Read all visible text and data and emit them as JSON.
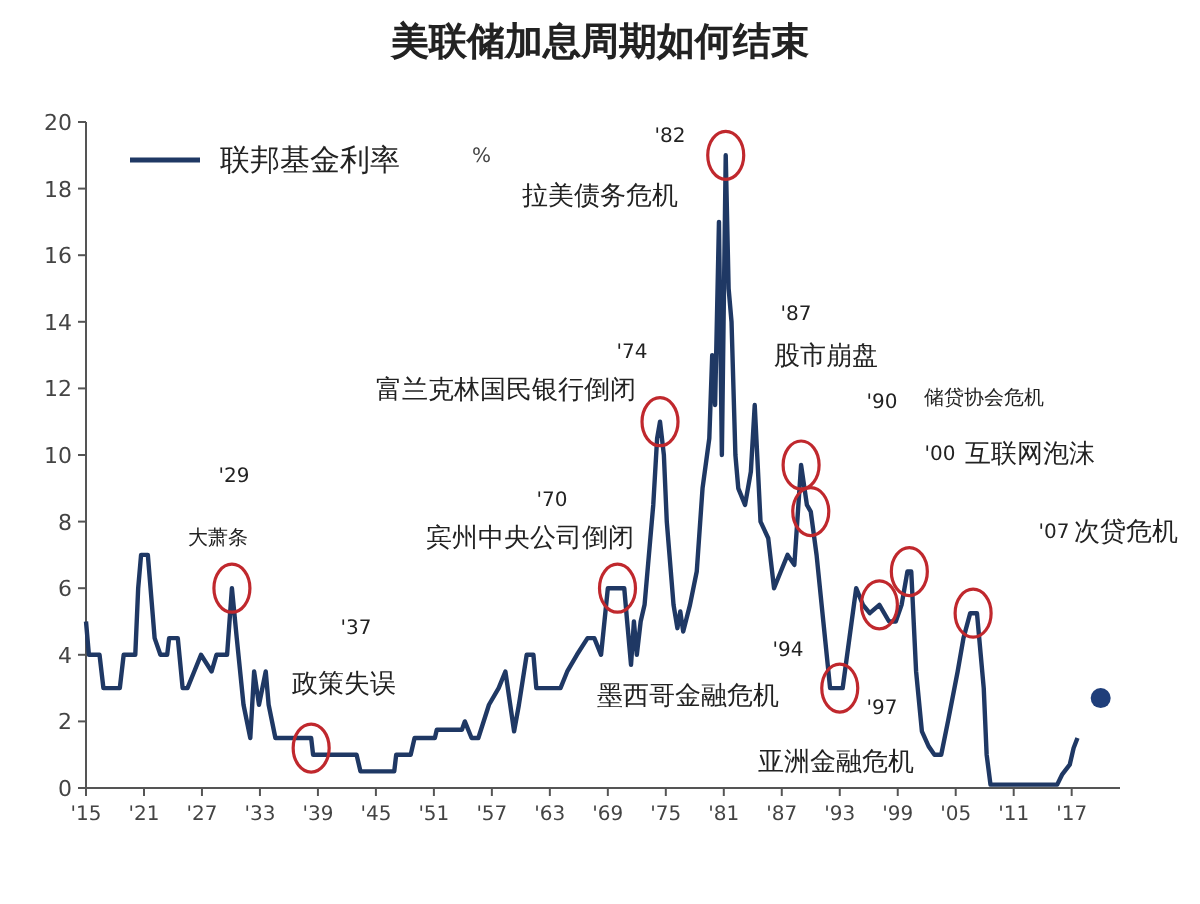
{
  "chart_data": {
    "type": "line",
    "title": "美联储加息周期如何结束",
    "ylabel": "%",
    "legend": "top left",
    "xlim": [
      1915,
      2022
    ],
    "ylim": [
      0,
      20
    ],
    "xticks": [
      {
        "value": 1915,
        "label": "'15"
      },
      {
        "value": 1921,
        "label": "'21"
      },
      {
        "value": 1927,
        "label": "'27"
      },
      {
        "value": 1933,
        "label": "'33"
      },
      {
        "value": 1939,
        "label": "'39"
      },
      {
        "value": 1945,
        "label": "'45"
      },
      {
        "value": 1951,
        "label": "'51"
      },
      {
        "value": 1957,
        "label": "'57"
      },
      {
        "value": 1963,
        "label": "'63"
      },
      {
        "value": 1969,
        "label": "'69"
      },
      {
        "value": 1975,
        "label": "'75"
      },
      {
        "value": 1981,
        "label": "'81"
      },
      {
        "value": 1987,
        "label": "'87"
      },
      {
        "value": 1993,
        "label": "'93"
      },
      {
        "value": 1999,
        "label": "'99"
      },
      {
        "value": 2005,
        "label": "'05"
      },
      {
        "value": 2011,
        "label": "'11"
      },
      {
        "value": 2017,
        "label": "'17"
      }
    ],
    "yticks": [
      0,
      2,
      4,
      6,
      8,
      10,
      12,
      14,
      16,
      18,
      20
    ],
    "series": [
      {
        "name": "联邦基金利率",
        "color": "#1f3864",
        "x": [
          1915,
          1915.3,
          1916.4,
          1916.8,
          1918.5,
          1918.9,
          1920.1,
          1920.4,
          1920.7,
          1921.4,
          1922.1,
          1922.7,
          1923.4,
          1923.6,
          1924.5,
          1925,
          1925.5,
          1926.2,
          1926.9,
          1928,
          1928.5,
          1929.6,
          1930.1,
          1930.6,
          1931.3,
          1932,
          1932.4,
          1932.9,
          1933.6,
          1933.9,
          1934.6,
          1938.3,
          1938.5,
          1943,
          1943.4,
          1946.9,
          1947.1,
          1948.6,
          1949,
          1951.1,
          1951.3,
          1953.9,
          1954.2,
          1954.9,
          1955.6,
          1956.7,
          1957.7,
          1958.4,
          1959.3,
          1959.8,
          1960.6,
          1961.3,
          1961.6,
          1964.1,
          1964.8,
          1965.8,
          1966.9,
          1967.6,
          1968.3,
          1969,
          1970.7,
          1971,
          1971.4,
          1971.7,
          1972,
          1972.4,
          1972.8,
          1973.7,
          1974.1,
          1974.4,
          1974.8,
          1975.1,
          1975.8,
          1976.2,
          1976.5,
          1976.8,
          1977.5,
          1978.2,
          1978.8,
          1979.5,
          1979.8,
          1980.1,
          1980.5,
          1980.8,
          1981.2,
          1981.5,
          1981.8,
          1982.2,
          1982.5,
          1983.2,
          1983.8,
          1984.2,
          1984.8,
          1985.6,
          1986.2,
          1986.9,
          1987.6,
          1988.3,
          1989,
          1989.6,
          1990,
          1990.6,
          1991.3,
          1992,
          1993.3,
          1994,
          1994.7,
          1995.4,
          1996.1,
          1997.1,
          1998.1,
          1998.8,
          1999.4,
          2000,
          2000.4,
          2000.9,
          2001.5,
          2002.2,
          2002.8,
          2003.5,
          2004.2,
          2005.2,
          2005.8,
          2006.5,
          2007.2,
          2007.9,
          2008.2,
          2008.6,
          2015.5,
          2016,
          2016.8,
          2017.2,
          2017.6
        ],
        "values": [
          5,
          4,
          4,
          3,
          3,
          4,
          4,
          6,
          7,
          7,
          4.5,
          4,
          4,
          4.5,
          4.5,
          3,
          3,
          3.5,
          4,
          3.5,
          4,
          4,
          6,
          4.5,
          2.5,
          1.5,
          3.5,
          2.5,
          3.5,
          2.5,
          1.5,
          1.5,
          1,
          1,
          0.5,
          0.5,
          1,
          1,
          1.5,
          1.5,
          1.75,
          1.75,
          2,
          1.5,
          1.5,
          2.5,
          3,
          3.5,
          1.7,
          2.5,
          4,
          4,
          3,
          3,
          3.5,
          4,
          4.5,
          4.5,
          4,
          6,
          6,
          5,
          3.7,
          5,
          4,
          5,
          5.5,
          8.5,
          10.5,
          11,
          10,
          8,
          5.5,
          4.8,
          5.3,
          4.7,
          5.5,
          6.5,
          9,
          10.5,
          13,
          11.5,
          17,
          10,
          19,
          15,
          14,
          10,
          9,
          8.5,
          9.5,
          11.5,
          8,
          7.5,
          6,
          6.5,
          7,
          6.7,
          9.7,
          8.5,
          8.3,
          7,
          5,
          3,
          3,
          4.5,
          6,
          5.5,
          5.25,
          5.5,
          5,
          5,
          5.5,
          6.5,
          6.5,
          3.5,
          1.7,
          1.25,
          1,
          1,
          2,
          3.5,
          4.5,
          5.25,
          5.25,
          3,
          1,
          0.1,
          0.1,
          0.4,
          0.7,
          1.2,
          1.5
        ]
      },
      {
        "type": "scatter",
        "color": "#1f3e7a",
        "x": [
          2020
        ],
        "values": [
          2.7
        ]
      },
      {
        "type": "scatter",
        "marker": "circle",
        "color": "#c0282d",
        "x": [
          1930.1,
          1938.3,
          1970,
          1974.4,
          1981.2,
          1989,
          1990,
          1993,
          1997.1,
          2000.2,
          2006.8
        ],
        "values": [
          6,
          1.2,
          6,
          11,
          19,
          9.7,
          8.3,
          3,
          5.5,
          6.5,
          5.25
        ]
      }
    ],
    "annotations": [
      "'29",
      "大萧条",
      "'37",
      "政策失误",
      "'70",
      "宾州中央公司倒闭",
      "'74",
      "富兰克林国民银行倒闭",
      "'82",
      "拉美债务危机",
      "'87",
      "股市崩盘",
      "'90",
      "储贷协会危机",
      "'00",
      "互联网泡沫",
      "'07",
      "次贷危机",
      "'94",
      "墨西哥金融危机",
      "'97",
      "亚洲金融危机"
    ]
  }
}
